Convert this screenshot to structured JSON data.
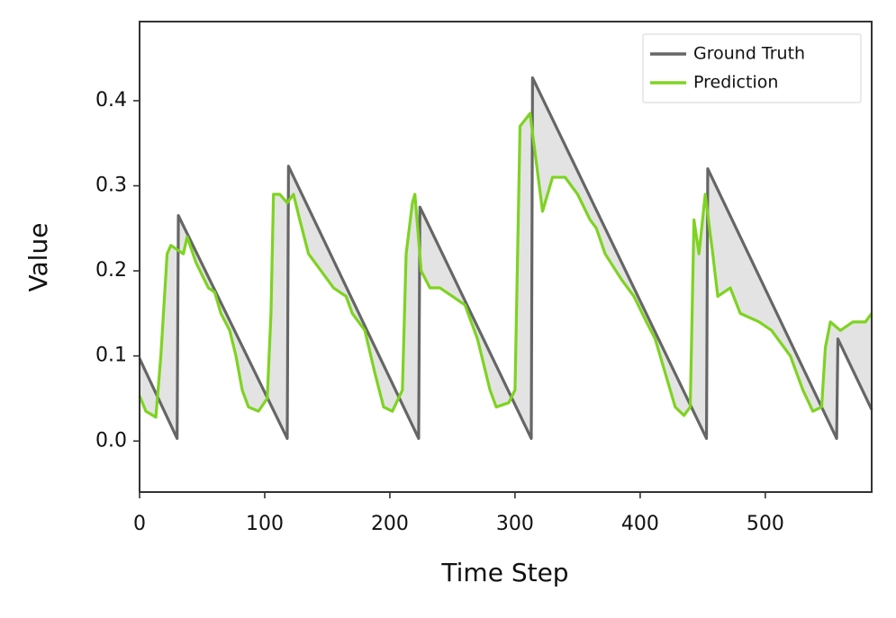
{
  "chart_data": {
    "type": "line",
    "x_label": "Time Step",
    "y_label": "Value",
    "xlim": [
      0,
      585
    ],
    "ylim": [
      -0.06,
      0.493
    ],
    "xticks": [
      0,
      100,
      200,
      300,
      400,
      500
    ],
    "yticks": [
      {
        "value": 0,
        "label": "0.0"
      },
      0.1,
      0.2,
      0.3,
      0.4
    ],
    "legend": "upper right",
    "fill_between": true,
    "series": [
      {
        "name": "Ground Truth",
        "color": "#666666",
        "x": [
          0,
          30,
          31,
          118,
          119,
          223,
          224,
          313,
          314,
          453,
          454,
          557,
          558,
          585
        ],
        "values": [
          0.097,
          0.003,
          0.265,
          0.003,
          0.323,
          0.003,
          0.275,
          0.003,
          0.427,
          0.003,
          0.32,
          0.003,
          0.12,
          0.037
        ]
      },
      {
        "name": "Prediction",
        "color": "#7ed321",
        "x": [
          0,
          5,
          13,
          17,
          22,
          25,
          35,
          38,
          45,
          55,
          60,
          65,
          72,
          77,
          82,
          87,
          95,
          102,
          105,
          107,
          112,
          118,
          123,
          128,
          135,
          145,
          155,
          165,
          170,
          180,
          188,
          195,
          202,
          210,
          213,
          218,
          220,
          225,
          232,
          240,
          250,
          260,
          270,
          280,
          285,
          295,
          300,
          304,
          312,
          322,
          330,
          340,
          350,
          360,
          365,
          372,
          385,
          395,
          405,
          412,
          420,
          428,
          435,
          440,
          443,
          447,
          452,
          458,
          462,
          472,
          480,
          495,
          505,
          520,
          530,
          538,
          545,
          548,
          552,
          560,
          570,
          580,
          585
        ],
        "values": [
          0.053,
          0.035,
          0.028,
          0.1,
          0.22,
          0.23,
          0.22,
          0.24,
          0.21,
          0.18,
          0.175,
          0.15,
          0.13,
          0.1,
          0.06,
          0.04,
          0.035,
          0.05,
          0.15,
          0.29,
          0.29,
          0.28,
          0.29,
          0.26,
          0.22,
          0.2,
          0.18,
          0.17,
          0.15,
          0.13,
          0.08,
          0.04,
          0.035,
          0.06,
          0.22,
          0.28,
          0.29,
          0.2,
          0.18,
          0.18,
          0.17,
          0.16,
          0.12,
          0.06,
          0.04,
          0.045,
          0.06,
          0.37,
          0.385,
          0.27,
          0.31,
          0.31,
          0.29,
          0.26,
          0.25,
          0.22,
          0.19,
          0.17,
          0.14,
          0.12,
          0.08,
          0.04,
          0.03,
          0.04,
          0.26,
          0.22,
          0.29,
          0.22,
          0.17,
          0.18,
          0.15,
          0.14,
          0.13,
          0.1,
          0.06,
          0.035,
          0.04,
          0.11,
          0.14,
          0.13,
          0.14,
          0.14,
          0.15
        ]
      }
    ]
  }
}
